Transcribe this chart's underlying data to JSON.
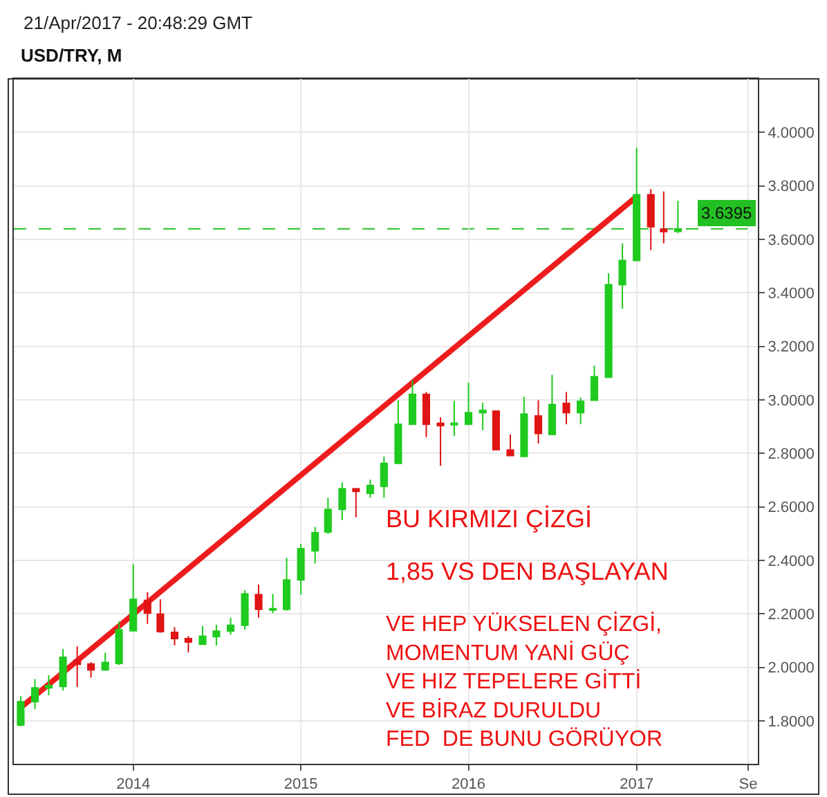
{
  "chart_data": {
    "type": "candlestick",
    "title": "USD/TRY, M",
    "annotations": [
      "21/Apr/2017 - 20:48:29 GMT",
      "BU KIRMIZI ÇİZGİ",
      "1,85 VS DEN BAŞLAYAN",
      "VE HEP YÜKSELEN ÇİZGİ,\nMOMENTUM YANİ GÜÇ\nVE HIZ TEPELERE GİTTİ\nVE BİRAZ DURULDU\nFED  DE BUNU GÖRÜYOR"
    ],
    "x": [
      "2013-05",
      "2013-06",
      "2013-07",
      "2013-08",
      "2013-09",
      "2013-10",
      "2013-11",
      "2013-12",
      "2014-01",
      "2014-02",
      "2014-03",
      "2014-04",
      "2014-05",
      "2014-06",
      "2014-07",
      "2014-08",
      "2014-09",
      "2014-10",
      "2014-11",
      "2014-12",
      "2015-01",
      "2015-02",
      "2015-03",
      "2015-04",
      "2015-05",
      "2015-06",
      "2015-07",
      "2015-08",
      "2015-09",
      "2015-10",
      "2015-11",
      "2015-12",
      "2016-01",
      "2016-02",
      "2016-03",
      "2016-04",
      "2016-05",
      "2016-06",
      "2016-07",
      "2016-08",
      "2016-09",
      "2016-10",
      "2016-11",
      "2016-12",
      "2017-01",
      "2017-02",
      "2017-03",
      "2017-04"
    ],
    "ohlc": [
      [
        1.785,
        1.893,
        1.78,
        1.872
      ],
      [
        1.872,
        1.957,
        1.844,
        1.924
      ],
      [
        1.924,
        1.971,
        1.896,
        1.932
      ],
      [
        1.929,
        2.069,
        1.914,
        2.038
      ],
      [
        2.027,
        2.079,
        1.927,
        2.012
      ],
      [
        2.013,
        2.02,
        1.962,
        1.991
      ],
      [
        1.991,
        2.055,
        1.988,
        2.019
      ],
      [
        2.015,
        2.172,
        2.01,
        2.141
      ],
      [
        2.137,
        2.386,
        2.137,
        2.255
      ],
      [
        2.251,
        2.281,
        2.163,
        2.203
      ],
      [
        2.199,
        2.255,
        2.13,
        2.134
      ],
      [
        2.131,
        2.151,
        2.082,
        2.108
      ],
      [
        2.108,
        2.117,
        2.056,
        2.095
      ],
      [
        2.087,
        2.155,
        2.085,
        2.117
      ],
      [
        2.115,
        2.16,
        2.082,
        2.136
      ],
      [
        2.136,
        2.186,
        2.123,
        2.158
      ],
      [
        2.158,
        2.289,
        2.141,
        2.275
      ],
      [
        2.272,
        2.31,
        2.186,
        2.217
      ],
      [
        2.215,
        2.275,
        2.203,
        2.22
      ],
      [
        2.217,
        2.41,
        2.212,
        2.327
      ],
      [
        2.327,
        2.462,
        2.272,
        2.444
      ],
      [
        2.436,
        2.525,
        2.389,
        2.504
      ],
      [
        2.506,
        2.634,
        2.5,
        2.591
      ],
      [
        2.591,
        2.692,
        2.551,
        2.668
      ],
      [
        2.668,
        2.671,
        2.561,
        2.658
      ],
      [
        2.651,
        2.702,
        2.634,
        2.68
      ],
      [
        2.677,
        2.789,
        2.634,
        2.763
      ],
      [
        2.763,
        2.999,
        2.763,
        2.909
      ],
      [
        2.909,
        3.073,
        2.909,
        3.021
      ],
      [
        3.021,
        3.03,
        2.861,
        2.909
      ],
      [
        2.913,
        2.935,
        2.754,
        2.904
      ],
      [
        2.907,
        2.996,
        2.866,
        2.913
      ],
      [
        2.909,
        3.064,
        2.909,
        2.952
      ],
      [
        2.952,
        2.99,
        2.887,
        2.961
      ],
      [
        2.958,
        2.96,
        2.812,
        2.814
      ],
      [
        2.813,
        2.871,
        2.79,
        2.792
      ],
      [
        2.789,
        3.012,
        2.789,
        2.947
      ],
      [
        2.94,
        2.999,
        2.837,
        2.875
      ],
      [
        2.871,
        3.094,
        2.871,
        2.983
      ],
      [
        2.987,
        3.03,
        2.909,
        2.952
      ],
      [
        2.952,
        3.009,
        2.909,
        2.995
      ],
      [
        2.999,
        3.128,
        2.999,
        3.087
      ],
      [
        3.085,
        3.474,
        3.085,
        3.431
      ],
      [
        3.431,
        3.585,
        3.34,
        3.521
      ],
      [
        3.521,
        3.943,
        3.521,
        3.767
      ],
      [
        3.767,
        3.788,
        3.56,
        3.647
      ],
      [
        3.638,
        3.779,
        3.585,
        3.629
      ],
      [
        3.63,
        3.745,
        3.624,
        3.6395
      ]
    ],
    "colors": [
      "#1ecb1e",
      "#1ecb1e",
      "#1ecb1e",
      "#1ecb1e",
      "#e01414",
      "#e01414",
      "#1ecb1e",
      "#1ecb1e",
      "#1ecb1e",
      "#e01414",
      "#e01414",
      "#e01414",
      "#e01414",
      "#1ecb1e",
      "#1ecb1e",
      "#1ecb1e",
      "#1ecb1e",
      "#e01414",
      "#1ecb1e",
      "#1ecb1e",
      "#1ecb1e",
      "#1ecb1e",
      "#1ecb1e",
      "#1ecb1e",
      "#e01414",
      "#1ecb1e",
      "#1ecb1e",
      "#1ecb1e",
      "#1ecb1e",
      "#e01414",
      "#e01414",
      "#1ecb1e",
      "#1ecb1e",
      "#1ecb1e",
      "#e01414",
      "#e01414",
      "#1ecb1e",
      "#e01414",
      "#1ecb1e",
      "#e01414",
      "#1ecb1e",
      "#1ecb1e",
      "#1ecb1e",
      "#1ecb1e",
      "#1ecb1e",
      "#e01414",
      "#e01414",
      "#1ecb1e"
    ],
    "series": [
      {
        "type": "line",
        "x": [
          "2013-05",
          "2017-01"
        ],
        "values": [
          1.85,
          3.76
        ],
        "color": "#ee1c1c"
      }
    ],
    "ref_lines": [
      {
        "axis": "y",
        "value": 3.6395,
        "label": "3.6395",
        "color": "#22c022",
        "line_style": "dashed"
      }
    ],
    "xlim": [
      "2013-04-16",
      "2017-09-22"
    ],
    "xticks": [
      "2014",
      "2015",
      "2016",
      "2017",
      {
        "value": "2017-09",
        "label": "Se"
      }
    ],
    "ylim": [
      1.64,
      4.2
    ],
    "yticks": [
      {
        "value": 1.8,
        "label": "1.8000"
      },
      {
        "value": 2.0,
        "label": "2.0000"
      },
      {
        "value": 2.2,
        "label": "2.2000"
      },
      {
        "value": 2.4,
        "label": "2.4000"
      },
      {
        "value": 2.6,
        "label": "2.6000"
      },
      {
        "value": 2.8,
        "label": "2.8000"
      },
      {
        "value": 3.0,
        "label": "3.0000"
      },
      {
        "value": 3.2,
        "label": "3.2000"
      },
      {
        "value": 3.4,
        "label": "3.4000"
      },
      {
        "value": 3.6,
        "label": "3.6000"
      },
      {
        "value": 3.8,
        "label": "3.8000"
      },
      {
        "value": 4.0,
        "label": "4.0000"
      }
    ],
    "grid": true
  }
}
